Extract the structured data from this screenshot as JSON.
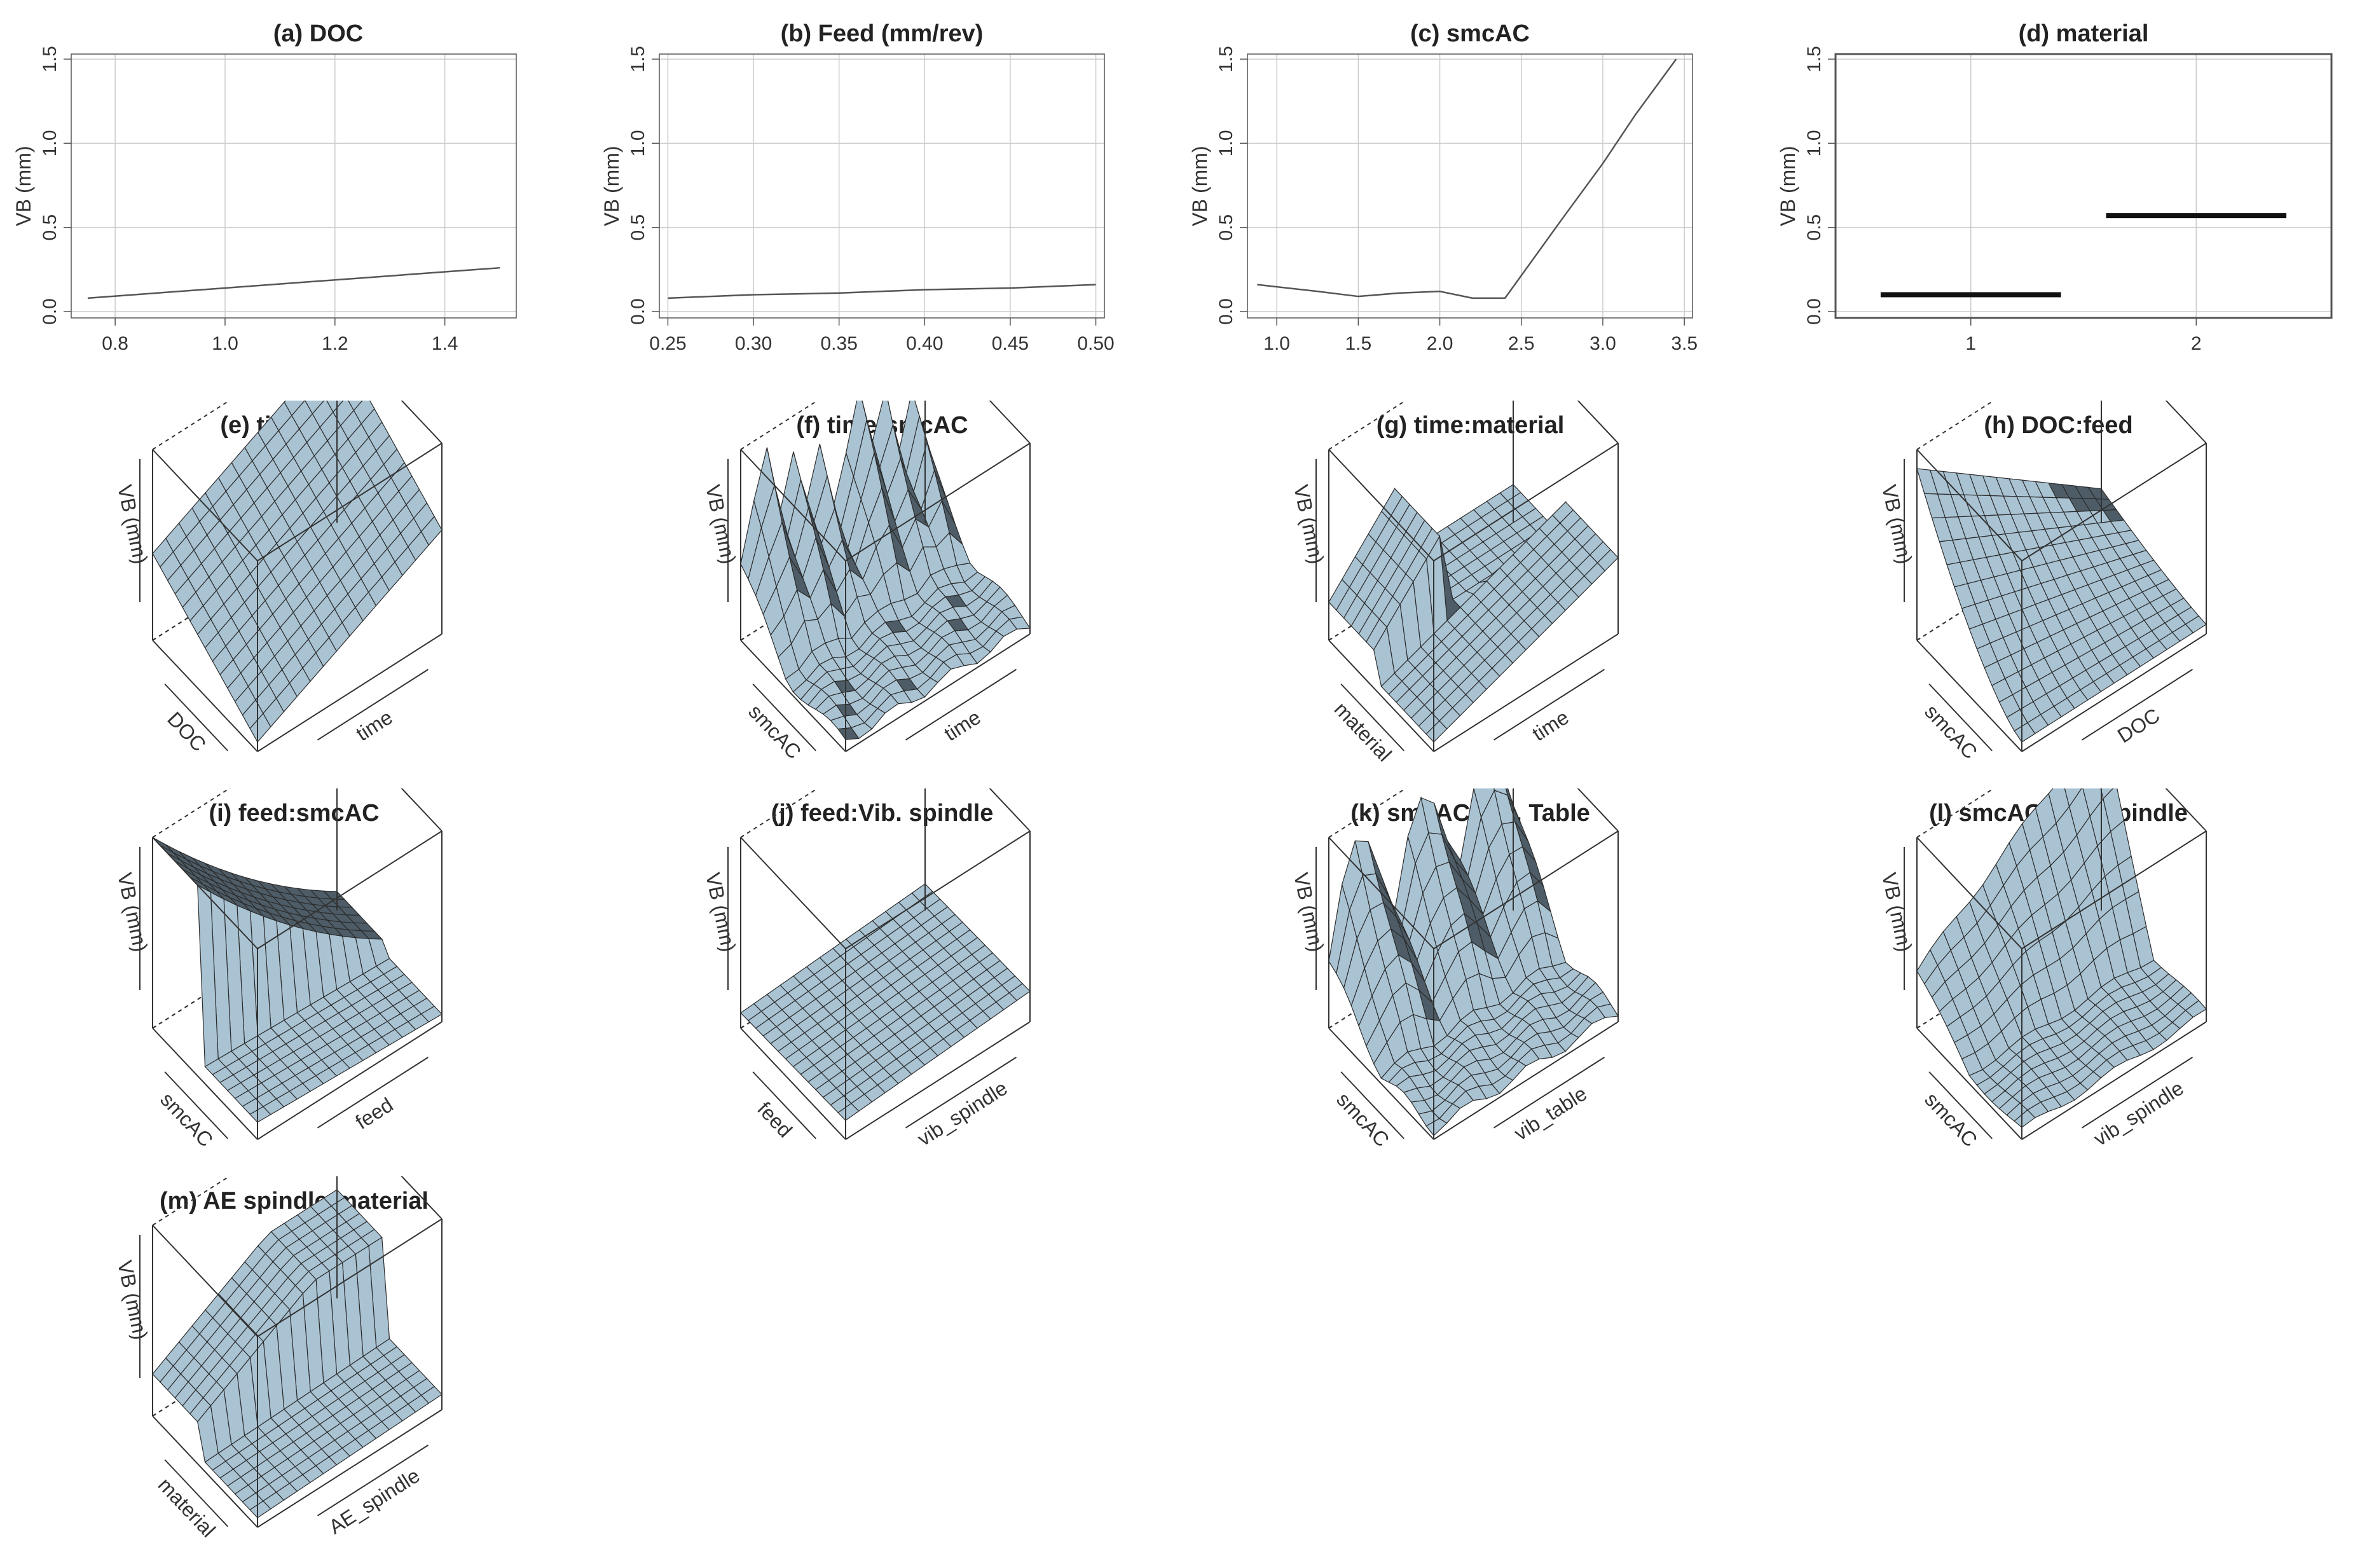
{
  "line_panels": [
    {
      "title": "(a) DOC",
      "ylabel": "VB (mm)"
    },
    {
      "title": "(b) Feed  (mm/rev)",
      "ylabel": "VB (mm)"
    },
    {
      "title": "(c) smcAC",
      "ylabel": "VB (mm)"
    },
    {
      "title": "(d) material",
      "ylabel": "VB (mm)"
    }
  ],
  "surface_panels": [
    {
      "title": "(e) time:DOC",
      "zlabel": "VB (mm)",
      "xlabel": "time",
      "ylabel": "DOC"
    },
    {
      "title": "(f) time:smcAC",
      "zlabel": "VB (mm)",
      "xlabel": "time",
      "ylabel": "smcAC"
    },
    {
      "title": "(g) time:material",
      "zlabel": "VB (mm)",
      "xlabel": "time",
      "ylabel": "material"
    },
    {
      "title": "(h) DOC:feed",
      "zlabel": "VB (mm)",
      "xlabel": "DOC",
      "ylabel": "smcAC"
    },
    {
      "title": "(i) feed:smcAC",
      "zlabel": "VB (mm)",
      "xlabel": "feed",
      "ylabel": "smcAC"
    },
    {
      "title": "(j) feed:Vib. spindle",
      "zlabel": "VB (mm)",
      "xlabel": "vib_spindle",
      "ylabel": "feed"
    },
    {
      "title": "(k) smcAC:Vib. Table",
      "zlabel": "VB (mm)",
      "xlabel": "vib_table",
      "ylabel": "smcAC"
    },
    {
      "title": "(l) smcAC:Vib. Spindle",
      "zlabel": "VB (mm)",
      "xlabel": "vib_spindle",
      "ylabel": "smcAC"
    },
    {
      "title": "(m) AE spindle:material",
      "zlabel": "VB (mm)",
      "xlabel": "AE_spindle",
      "ylabel": "material"
    }
  ],
  "colors": {
    "surface_light": "#a9c3d3",
    "surface_dark": "#4d5c66",
    "grid": "#cccccc",
    "line": "#555555"
  },
  "chart_data": [
    {
      "type": "line",
      "title": "(a) DOC",
      "ylabel": "VB (mm)",
      "xlim": [
        0.72,
        1.53
      ],
      "ylim": [
        0,
        1.5
      ],
      "xticks": [
        "0.8",
        "1.0",
        "1.2",
        "1.4"
      ],
      "xtick_values": [
        0.8,
        1.0,
        1.2,
        1.4
      ],
      "yticks": [
        "0.0",
        "0.5",
        "1.0",
        "1.5"
      ],
      "ytick_values": [
        0,
        0.5,
        1.0,
        1.5
      ],
      "grid": true,
      "series": [
        {
          "x": [
            0.75,
            1.0,
            1.25,
            1.5
          ],
          "y": [
            0.08,
            0.14,
            0.2,
            0.26
          ]
        }
      ]
    },
    {
      "type": "line",
      "title": "(b) Feed  (mm/rev)",
      "ylabel": "VB (mm)",
      "xlim": [
        0.245,
        0.505
      ],
      "ylim": [
        0,
        1.5
      ],
      "xticks": [
        "0.25",
        "0.30",
        "0.35",
        "0.40",
        "0.45",
        "0.50"
      ],
      "xtick_values": [
        0.25,
        0.3,
        0.35,
        0.4,
        0.45,
        0.5
      ],
      "yticks": [
        "0.0",
        "0.5",
        "1.0",
        "1.5"
      ],
      "ytick_values": [
        0,
        0.5,
        1.0,
        1.5
      ],
      "grid": true,
      "series": [
        {
          "x": [
            0.25,
            0.3,
            0.35,
            0.4,
            0.45,
            0.5
          ],
          "y": [
            0.08,
            0.1,
            0.11,
            0.13,
            0.14,
            0.16
          ]
        }
      ]
    },
    {
      "type": "line",
      "title": "(c) smcAC",
      "ylabel": "VB (mm)",
      "xlim": [
        0.82,
        3.55
      ],
      "ylim": [
        0,
        1.5
      ],
      "xticks": [
        "1.0",
        "1.5",
        "2.0",
        "2.5",
        "3.0",
        "3.5"
      ],
      "xtick_values": [
        1.0,
        1.5,
        2.0,
        2.5,
        3.0,
        3.5
      ],
      "yticks": [
        "0.0",
        "0.5",
        "1.0",
        "1.5"
      ],
      "ytick_values": [
        0,
        0.5,
        1.0,
        1.5
      ],
      "grid": true,
      "series": [
        {
          "x": [
            0.88,
            1.25,
            1.5,
            1.75,
            2.0,
            2.2,
            2.4,
            2.75,
            3.0,
            3.2,
            3.45
          ],
          "y": [
            0.16,
            0.12,
            0.09,
            0.11,
            0.12,
            0.08,
            0.08,
            0.55,
            0.88,
            1.17,
            1.5
          ]
        }
      ]
    },
    {
      "type": "line",
      "title": "(d) material",
      "ylabel": "VB (mm)",
      "xlim": [
        0.4,
        2.6
      ],
      "ylim": [
        0,
        1.5
      ],
      "xticks": [
        "1",
        "2"
      ],
      "xtick_values": [
        1,
        2
      ],
      "yticks": [
        "0.0",
        "0.5",
        "1.0",
        "1.5"
      ],
      "ytick_values": [
        0,
        0.5,
        1.0,
        1.5
      ],
      "grid": true,
      "series": [
        {
          "segments": [
            {
              "x": [
                0.6,
                1.4
              ],
              "y": [
                0.1,
                0.1
              ]
            },
            {
              "x": [
                1.6,
                2.4
              ],
              "y": [
                0.57,
                0.57
              ]
            }
          ]
        }
      ]
    }
  ]
}
